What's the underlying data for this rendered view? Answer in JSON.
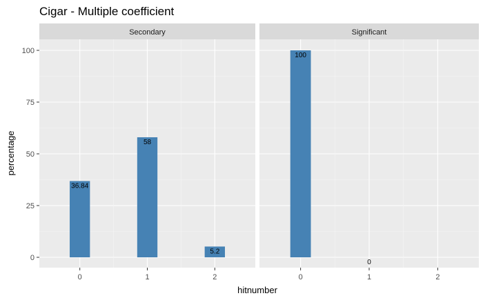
{
  "chart_data": {
    "type": "bar",
    "title": "Cigar - Multiple coefficient",
    "xlabel": "hitnumber",
    "ylabel": "percentage",
    "ylim": [
      0,
      110
    ],
    "y_ticks": [
      0,
      25,
      50,
      75,
      100
    ],
    "categories": [
      "0",
      "1",
      "2"
    ],
    "bar_color": "#4682B4",
    "panel_background": "#EBEBEB",
    "strip_background": "#D9D9D9",
    "grid": true,
    "facets": [
      {
        "name": "Secondary",
        "values": [
          36.84,
          58,
          5.2
        ],
        "labels": [
          "36.84",
          "58",
          "5.2"
        ]
      },
      {
        "name": "Significant",
        "values": [
          100,
          0,
          null
        ],
        "labels": [
          "100",
          "0",
          null
        ]
      }
    ]
  }
}
